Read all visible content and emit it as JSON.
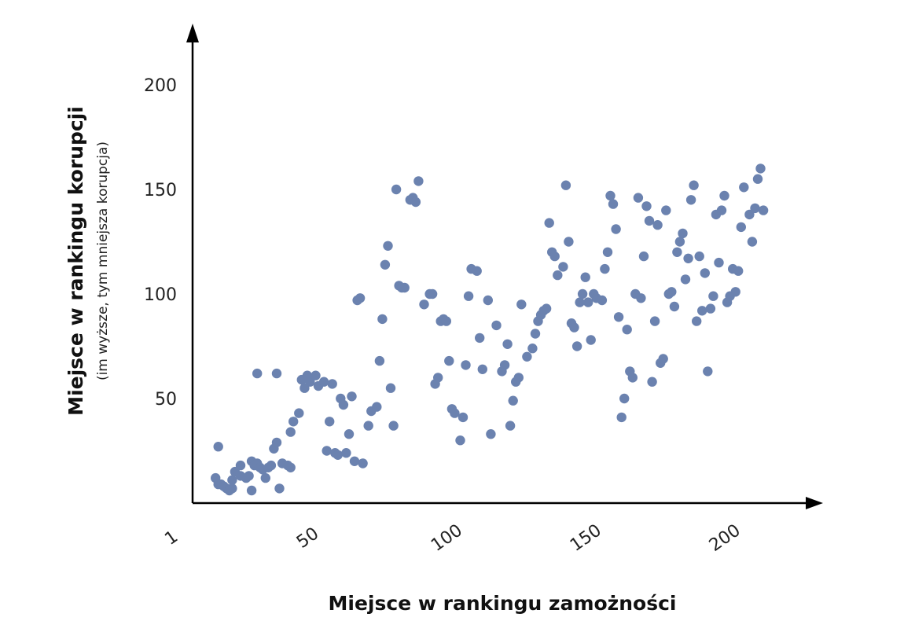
{
  "chart_data": {
    "type": "scatter",
    "title": "",
    "xlabel": "Miejsce w rankingu zamożności",
    "ylabel": "Miejsce w rankingu korupcji",
    "ylabel_sub": "(im wyższe, tym mniejsza korupcja)",
    "xlim": [
      1,
      225
    ],
    "ylim": [
      0,
      225
    ],
    "x_ticks": [
      1,
      50,
      100,
      150,
      200
    ],
    "x_tick_labels": [
      "1",
      "50",
      "100",
      "150",
      "200"
    ],
    "y_ticks": [
      50,
      100,
      150,
      200
    ],
    "y_tick_labels": [
      "50",
      "100",
      "150",
      "200"
    ],
    "grid": false,
    "legend": "none",
    "point_color": "#6b82af",
    "axis_color": "#000000",
    "points": [
      [
        5,
        12
      ],
      [
        6,
        9
      ],
      [
        7,
        9
      ],
      [
        8,
        8
      ],
      [
        9,
        7
      ],
      [
        10,
        6
      ],
      [
        11,
        11
      ],
      [
        12,
        15
      ],
      [
        14,
        13
      ],
      [
        16,
        12
      ],
      [
        17,
        13
      ],
      [
        18,
        20
      ],
      [
        19,
        18
      ],
      [
        20,
        19
      ],
      [
        21,
        17
      ],
      [
        22,
        16
      ],
      [
        23,
        12
      ],
      [
        24,
        17
      ],
      [
        25,
        18
      ],
      [
        26,
        26
      ],
      [
        27,
        29
      ],
      [
        28,
        7
      ],
      [
        29,
        19
      ],
      [
        6,
        27
      ],
      [
        11,
        7
      ],
      [
        14,
        18
      ],
      [
        18,
        6
      ],
      [
        20,
        62
      ],
      [
        27,
        62
      ],
      [
        31,
        18
      ],
      [
        32,
        17
      ],
      [
        32,
        34
      ],
      [
        33,
        39
      ],
      [
        35,
        43
      ],
      [
        36,
        59
      ],
      [
        37,
        55
      ],
      [
        38,
        61
      ],
      [
        39,
        58
      ],
      [
        41,
        61
      ],
      [
        42,
        56
      ],
      [
        44,
        58
      ],
      [
        45,
        25
      ],
      [
        46,
        39
      ],
      [
        47,
        57
      ],
      [
        48,
        24
      ],
      [
        49,
        23
      ],
      [
        50,
        50
      ],
      [
        51,
        47
      ],
      [
        52,
        24
      ],
      [
        53,
        33
      ],
      [
        54,
        51
      ],
      [
        55,
        20
      ],
      [
        56,
        97
      ],
      [
        57,
        98
      ],
      [
        58,
        19
      ],
      [
        60,
        37
      ],
      [
        61,
        44
      ],
      [
        63,
        46
      ],
      [
        64,
        68
      ],
      [
        65,
        88
      ],
      [
        66,
        114
      ],
      [
        67,
        123
      ],
      [
        68,
        55
      ],
      [
        69,
        37
      ],
      [
        70,
        150
      ],
      [
        71,
        104
      ],
      [
        72,
        103
      ],
      [
        73,
        103
      ],
      [
        75,
        145
      ],
      [
        76,
        146
      ],
      [
        77,
        144
      ],
      [
        78,
        154
      ],
      [
        80,
        95
      ],
      [
        82,
        100
      ],
      [
        83,
        100
      ],
      [
        84,
        57
      ],
      [
        85,
        60
      ],
      [
        86,
        87
      ],
      [
        87,
        88
      ],
      [
        88,
        87
      ],
      [
        89,
        68
      ],
      [
        90,
        45
      ],
      [
        91,
        43
      ],
      [
        93,
        30
      ],
      [
        94,
        41
      ],
      [
        95,
        66
      ],
      [
        96,
        99
      ],
      [
        97,
        112
      ],
      [
        99,
        111
      ],
      [
        100,
        79
      ],
      [
        101,
        64
      ],
      [
        103,
        97
      ],
      [
        104,
        33
      ],
      [
        106,
        85
      ],
      [
        108,
        63
      ],
      [
        109,
        66
      ],
      [
        110,
        76
      ],
      [
        111,
        37
      ],
      [
        112,
        49
      ],
      [
        113,
        58
      ],
      [
        114,
        60
      ],
      [
        115,
        95
      ],
      [
        117,
        70
      ],
      [
        119,
        74
      ],
      [
        120,
        81
      ],
      [
        121,
        87
      ],
      [
        122,
        90
      ],
      [
        123,
        92
      ],
      [
        124,
        93
      ],
      [
        125,
        134
      ],
      [
        126,
        120
      ],
      [
        127,
        118
      ],
      [
        128,
        109
      ],
      [
        130,
        113
      ],
      [
        131,
        152
      ],
      [
        132,
        125
      ],
      [
        133,
        86
      ],
      [
        134,
        84
      ],
      [
        135,
        75
      ],
      [
        136,
        96
      ],
      [
        137,
        100
      ],
      [
        138,
        108
      ],
      [
        139,
        96
      ],
      [
        140,
        78
      ],
      [
        141,
        100
      ],
      [
        142,
        98
      ],
      [
        144,
        97
      ],
      [
        145,
        112
      ],
      [
        146,
        120
      ],
      [
        147,
        147
      ],
      [
        148,
        143
      ],
      [
        149,
        131
      ],
      [
        150,
        89
      ],
      [
        151,
        41
      ],
      [
        152,
        50
      ],
      [
        153,
        83
      ],
      [
        154,
        63
      ],
      [
        155,
        60
      ],
      [
        156,
        100
      ],
      [
        157,
        146
      ],
      [
        158,
        98
      ],
      [
        159,
        118
      ],
      [
        160,
        142
      ],
      [
        161,
        135
      ],
      [
        162,
        58
      ],
      [
        163,
        87
      ],
      [
        164,
        133
      ],
      [
        165,
        67
      ],
      [
        166,
        69
      ],
      [
        167,
        140
      ],
      [
        168,
        100
      ],
      [
        169,
        101
      ],
      [
        170,
        94
      ],
      [
        171,
        120
      ],
      [
        172,
        125
      ],
      [
        173,
        129
      ],
      [
        174,
        107
      ],
      [
        175,
        117
      ],
      [
        176,
        145
      ],
      [
        177,
        152
      ],
      [
        178,
        87
      ],
      [
        179,
        118
      ],
      [
        180,
        92
      ],
      [
        181,
        110
      ],
      [
        182,
        63
      ],
      [
        183,
        93
      ],
      [
        184,
        99
      ],
      [
        185,
        138
      ],
      [
        186,
        115
      ],
      [
        187,
        140
      ],
      [
        188,
        147
      ],
      [
        189,
        96
      ],
      [
        190,
        99
      ],
      [
        191,
        112
      ],
      [
        192,
        101
      ],
      [
        193,
        111
      ],
      [
        194,
        132
      ],
      [
        195,
        151
      ],
      [
        197,
        138
      ],
      [
        198,
        125
      ],
      [
        199,
        141
      ],
      [
        200,
        155
      ],
      [
        201,
        160
      ],
      [
        202,
        140
      ]
    ]
  }
}
